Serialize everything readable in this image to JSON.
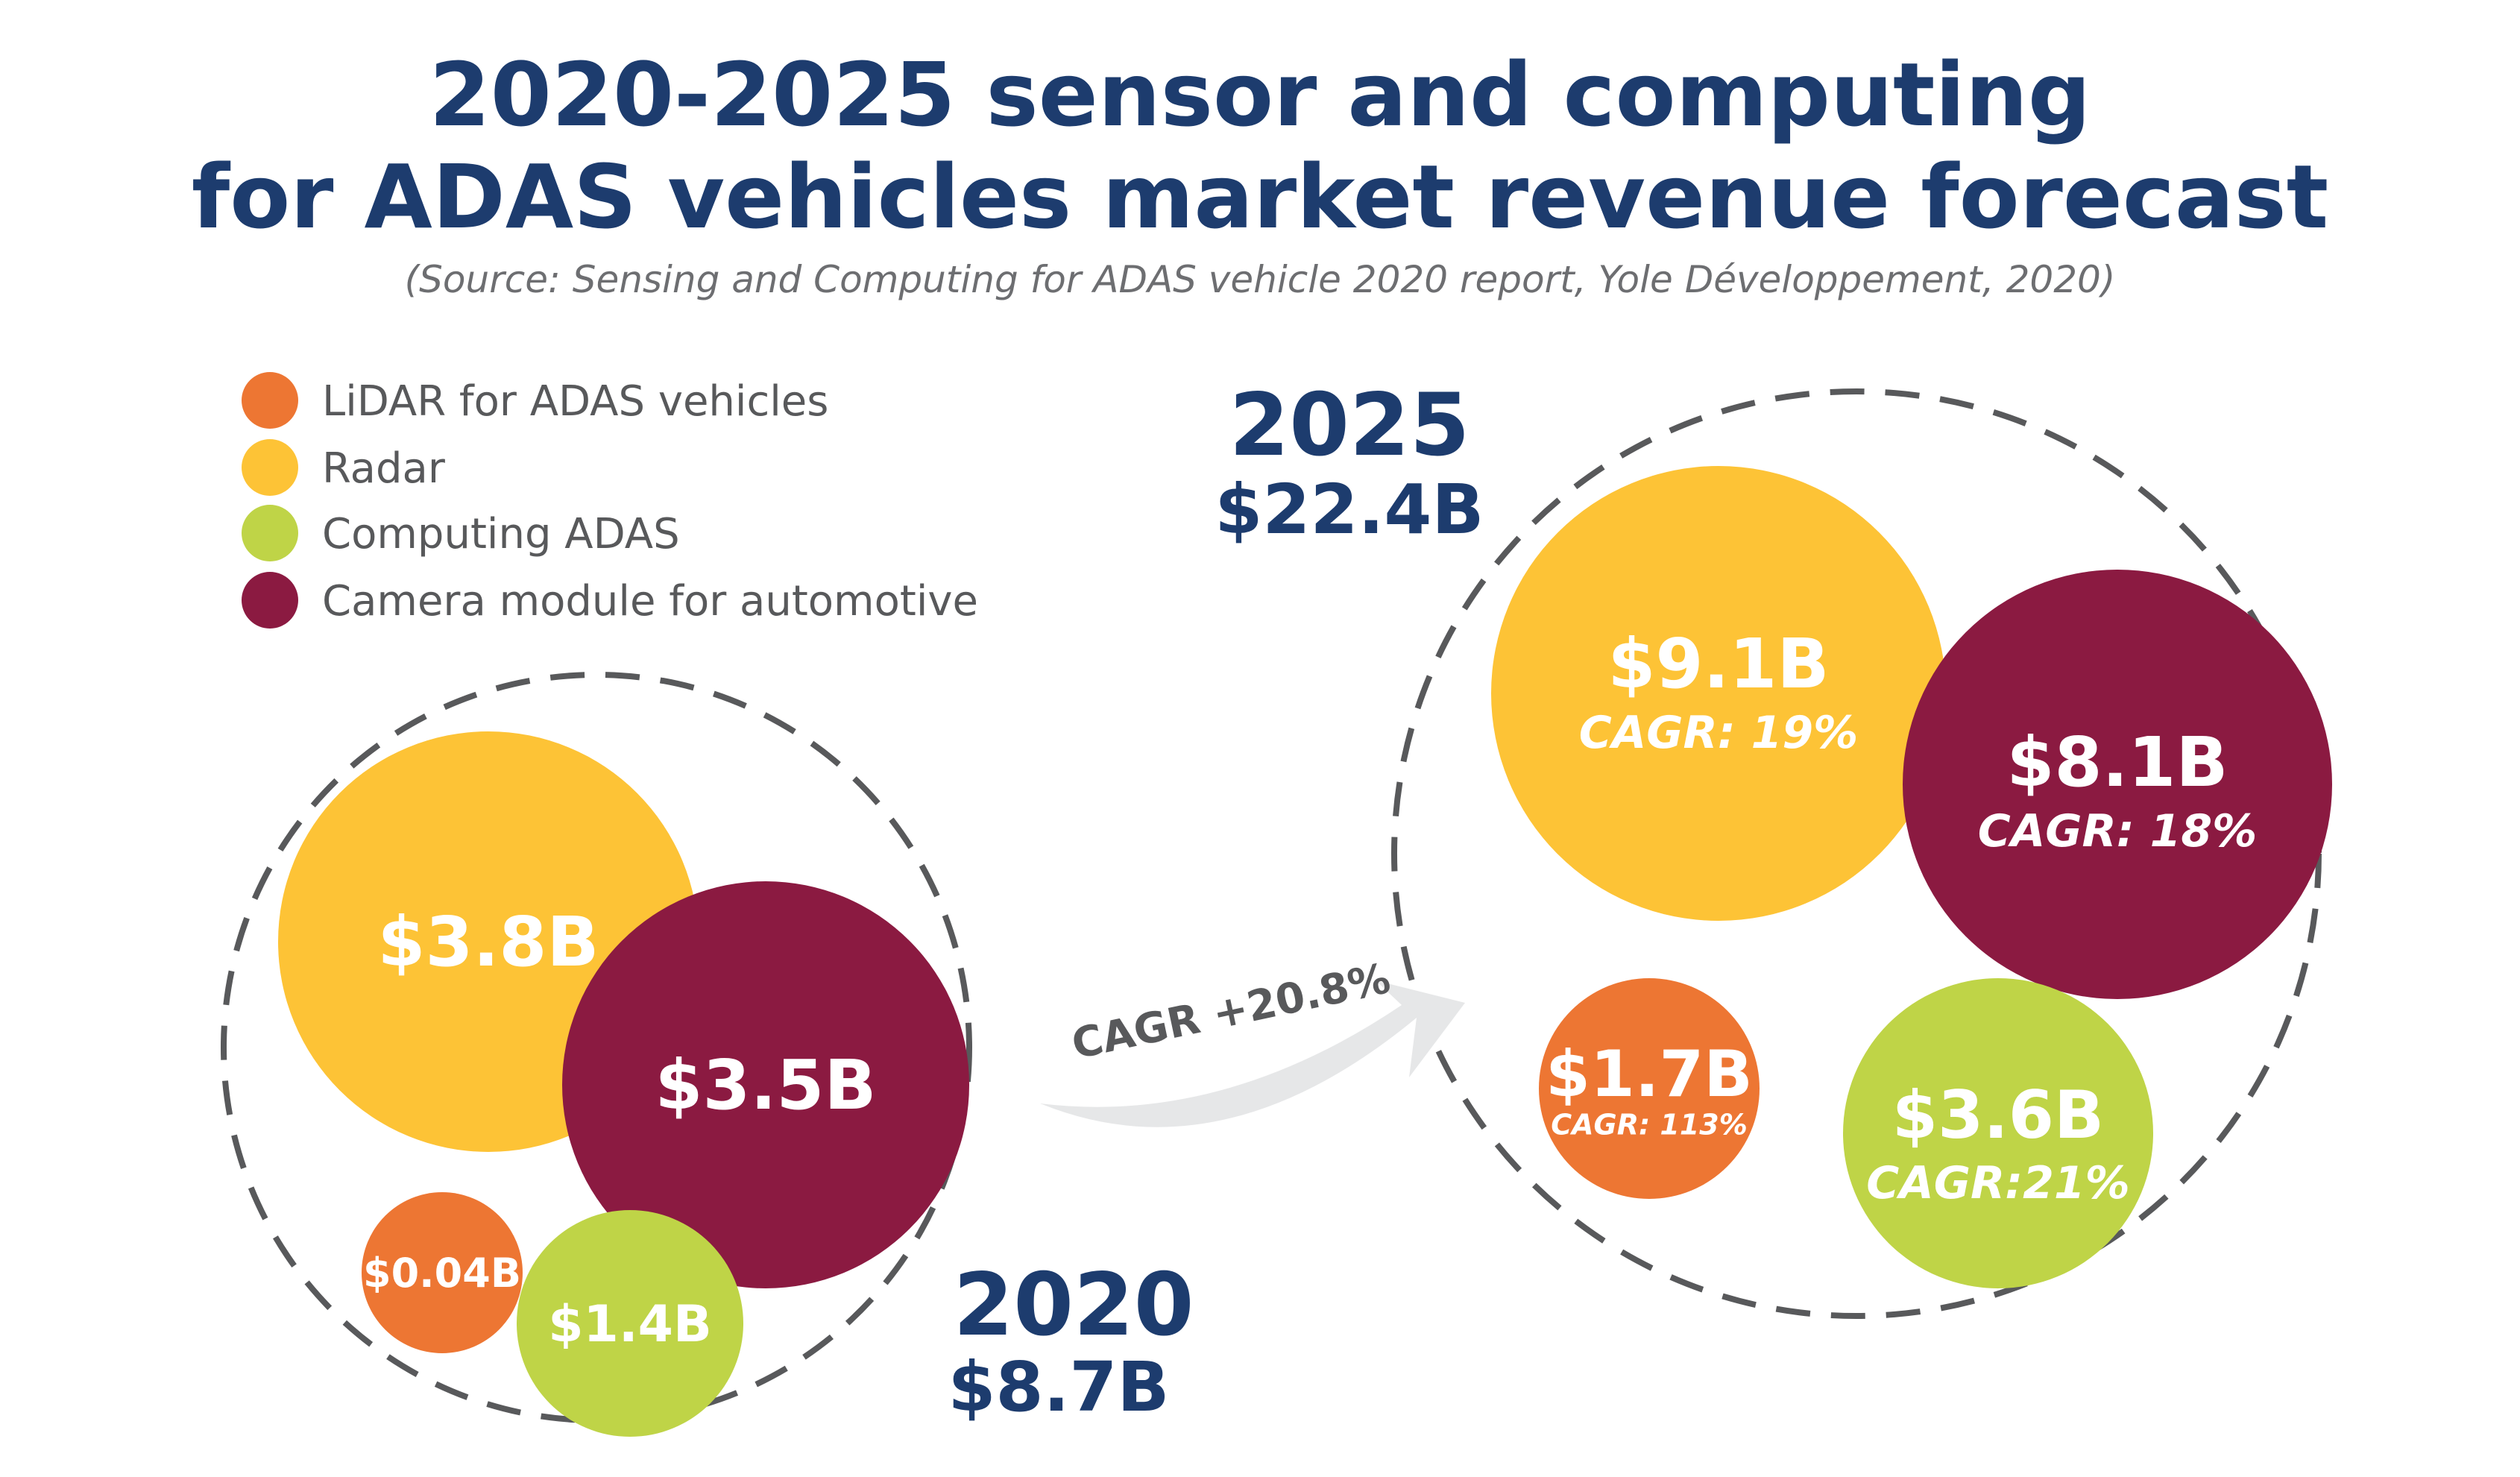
{
  "title_line1": "2020-2025 sensor and computing",
  "title_line2": "for ADAS vehicles market revenue forecast",
  "source": "(Source: Sensing and Computing for ADAS vehicle 2020 report, Yole Développement, 2020)",
  "colors": {
    "title": "#1d3c6e",
    "year": "#1d3c6e",
    "source": "#6d6e71",
    "legend_text": "#58595b",
    "arrow": "#e6e7e8",
    "arrow_text": "#58595b",
    "dash": "#58595b",
    "bubble_text": "#ffffff"
  },
  "legend": [
    {
      "label": "LiDAR for ADAS vehicles",
      "color": "#ed7633"
    },
    {
      "label": "Radar",
      "color": "#fdc336"
    },
    {
      "label": "Computing ADAS",
      "color": "#bfd447"
    },
    {
      "label": "Camera module for automotive",
      "color": "#8b1a41"
    }
  ],
  "arrow_label": "CAGR +20.8%",
  "chart_data": {
    "type": "bubble",
    "series_names": [
      "LiDAR for ADAS vehicles",
      "Radar",
      "Computing ADAS",
      "Camera module for automotive"
    ],
    "groups": [
      {
        "year": "2020",
        "total_label": "$8.7B",
        "total": 8.7,
        "bubbles": [
          {
            "series": "Radar",
            "value": 3.8,
            "label": "$3.8B",
            "cagr_label": ""
          },
          {
            "series": "Camera module for automotive",
            "value": 3.5,
            "label": "$3.5B",
            "cagr_label": ""
          },
          {
            "series": "LiDAR for ADAS vehicles",
            "value": 0.04,
            "label": "$0.04B",
            "cagr_label": ""
          },
          {
            "series": "Computing ADAS",
            "value": 1.4,
            "label": "$1.4B",
            "cagr_label": ""
          }
        ]
      },
      {
        "year": "2025",
        "total_label": "$22.4B",
        "total": 22.4,
        "bubbles": [
          {
            "series": "Radar",
            "value": 9.1,
            "label": "$9.1B",
            "cagr_label": "CAGR: 19%"
          },
          {
            "series": "Camera module for automotive",
            "value": 8.1,
            "label": "$8.1B",
            "cagr_label": "CAGR: 18%"
          },
          {
            "series": "LiDAR for ADAS vehicles",
            "value": 1.7,
            "label": "$1.7B",
            "cagr_label": "CAGR: 113%"
          },
          {
            "series": "Computing ADAS",
            "value": 3.6,
            "label": "$3.6B",
            "cagr_label": "CAGR:21%"
          }
        ]
      }
    ]
  }
}
